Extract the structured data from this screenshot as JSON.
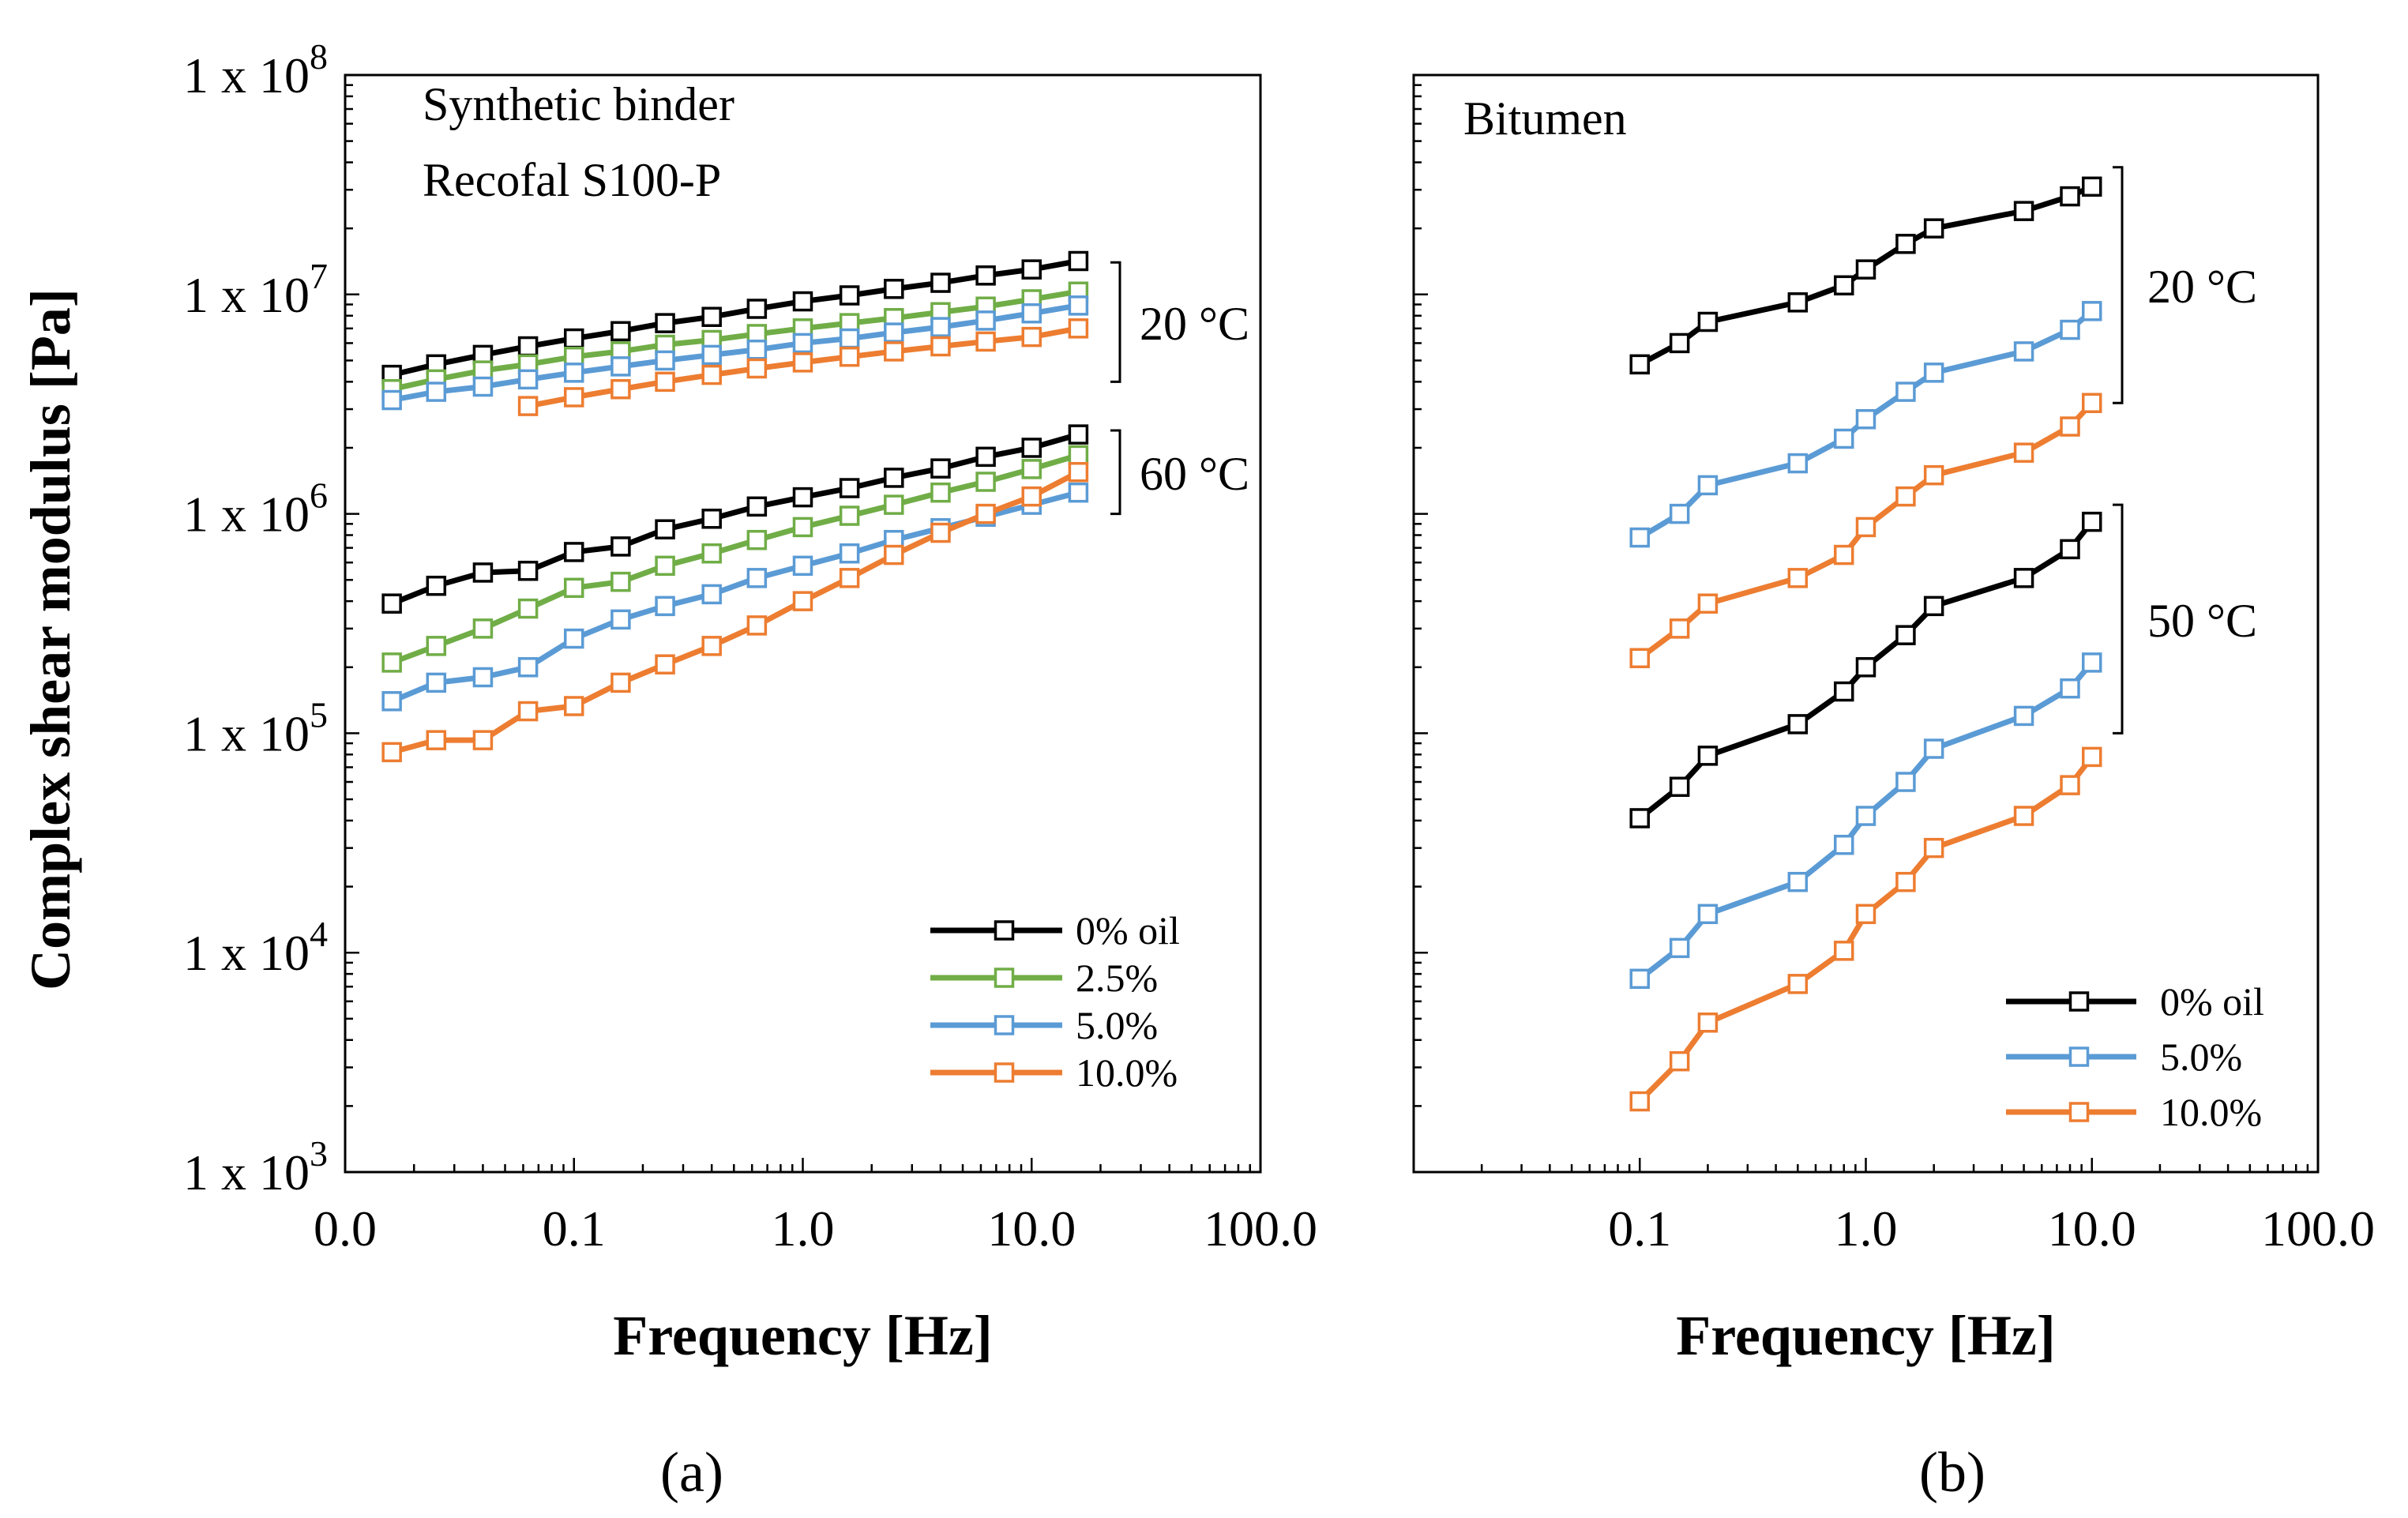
{
  "chart_data": [
    {
      "type": "line",
      "panel_label": "(a)",
      "xlabel": "Frequency [Hz]",
      "ylabel": "Complex  shear modulus [Pa]",
      "x_scale": "log",
      "y_scale": "log",
      "xlim": [
        0.01,
        100
      ],
      "ylim": [
        1000,
        100000000
      ],
      "x_tick_values": [
        0.01,
        0.1,
        1,
        10,
        100
      ],
      "x_tick_labels": [
        "0.0",
        "0.1",
        "1.0",
        "10.0",
        "100.0"
      ],
      "y_tick_values": [
        1000,
        10000,
        100000,
        1000000,
        10000000,
        100000000
      ],
      "y_tick_labels": [
        {
          "base": "1 x 10",
          "exp": "3"
        },
        {
          "base": "1 x 10",
          "exp": "4"
        },
        {
          "base": "1 x 10",
          "exp": "5"
        },
        {
          "base": "1 x 10",
          "exp": "6"
        },
        {
          "base": "1 x 10",
          "exp": "7"
        },
        {
          "base": "1 x 10",
          "exp": "8"
        }
      ],
      "annotations": [
        {
          "lines": [
            "Synthetic binder",
            "Recofal S100-P"
          ]
        },
        {
          "text": "20 °C",
          "bracket": [
            4000000,
            14000000
          ]
        },
        {
          "text": "60 °C",
          "bracket": [
            1000000,
            2400000
          ]
        }
      ],
      "legend": {
        "position": "bottom-right",
        "entries": [
          "0% oil",
          "2.5%",
          "5.0%",
          "10.0%"
        ]
      },
      "grid": false,
      "series": [
        {
          "legend_index": 0,
          "color": "#000000",
          "temperature": "20 °C",
          "x": [
            0.016,
            0.025,
            0.04,
            0.063,
            0.1,
            0.16,
            0.25,
            0.4,
            0.63,
            1.0,
            1.6,
            2.5,
            4.0,
            6.3,
            10,
            16
          ],
          "y": [
            4300000,
            4800000,
            5300000,
            5800000,
            6300000,
            6800000,
            7400000,
            7900000,
            8600000,
            9300000,
            9900000,
            10600000,
            11300000,
            12200000,
            13000000,
            14200000
          ]
        },
        {
          "legend_index": 1,
          "color": "#70ad47",
          "temperature": "20 °C",
          "x": [
            0.016,
            0.025,
            0.04,
            0.063,
            0.1,
            0.16,
            0.25,
            0.4,
            0.63,
            1.0,
            1.6,
            2.5,
            4.0,
            6.3,
            10,
            16
          ],
          "y": [
            3700000,
            4100000,
            4500000,
            4800000,
            5200000,
            5500000,
            5900000,
            6200000,
            6600000,
            7000000,
            7400000,
            7800000,
            8300000,
            8800000,
            9500000,
            10300000
          ]
        },
        {
          "legend_index": 2,
          "color": "#5b9bd5",
          "temperature": "20 °C",
          "x": [
            0.016,
            0.025,
            0.04,
            0.063,
            0.1,
            0.16,
            0.25,
            0.4,
            0.63,
            1.0,
            1.6,
            2.5,
            4.0,
            6.3,
            10,
            16
          ],
          "y": [
            3300000,
            3600000,
            3800000,
            4100000,
            4400000,
            4700000,
            5000000,
            5300000,
            5600000,
            6000000,
            6300000,
            6700000,
            7100000,
            7600000,
            8200000,
            8900000
          ]
        },
        {
          "legend_index": 3,
          "color": "#ed7d31",
          "temperature": "20 °C",
          "x": [
            0.063,
            0.1,
            0.16,
            0.25,
            0.4,
            0.63,
            1.0,
            1.6,
            2.5,
            4.0,
            6.3,
            10,
            16
          ],
          "y": [
            3100000,
            3400000,
            3700000,
            4000000,
            4300000,
            4600000,
            4900000,
            5200000,
            5500000,
            5800000,
            6100000,
            6400000,
            7000000
          ]
        },
        {
          "legend_index": 0,
          "color": "#000000",
          "temperature": "60 °C",
          "x": [
            0.016,
            0.025,
            0.04,
            0.063,
            0.1,
            0.16,
            0.25,
            0.4,
            0.63,
            1.0,
            1.6,
            2.5,
            4.0,
            6.3,
            10,
            16
          ],
          "y": [
            390000,
            470000,
            540000,
            550000,
            670000,
            710000,
            850000,
            950000,
            1080000,
            1190000,
            1310000,
            1460000,
            1610000,
            1820000,
            2000000,
            2300000
          ]
        },
        {
          "legend_index": 1,
          "color": "#70ad47",
          "temperature": "60 °C",
          "x": [
            0.016,
            0.025,
            0.04,
            0.063,
            0.1,
            0.16,
            0.25,
            0.4,
            0.63,
            1.0,
            1.6,
            2.5,
            4.0,
            6.3,
            10,
            16
          ],
          "y": [
            210000,
            250000,
            300000,
            370000,
            460000,
            490000,
            580000,
            660000,
            760000,
            870000,
            980000,
            1100000,
            1250000,
            1400000,
            1600000,
            1850000
          ]
        },
        {
          "legend_index": 2,
          "color": "#5b9bd5",
          "temperature": "60 °C",
          "x": [
            0.016,
            0.025,
            0.04,
            0.063,
            0.1,
            0.16,
            0.25,
            0.4,
            0.63,
            1.0,
            1.6,
            2.5,
            4.0,
            6.3,
            10,
            16
          ],
          "y": [
            140000,
            170000,
            180000,
            200000,
            270000,
            330000,
            380000,
            430000,
            510000,
            580000,
            660000,
            760000,
            860000,
            970000,
            1100000,
            1250000
          ]
        },
        {
          "legend_index": 3,
          "color": "#ed7d31",
          "temperature": "60 °C",
          "x": [
            0.016,
            0.025,
            0.04,
            0.063,
            0.1,
            0.16,
            0.25,
            0.4,
            0.63,
            1.0,
            1.6,
            2.5,
            4.0,
            6.3,
            10,
            16
          ],
          "y": [
            82000,
            93000,
            93000,
            126000,
            133000,
            170000,
            206000,
            250000,
            310000,
            400000,
            510000,
            650000,
            820000,
            1000000,
            1200000,
            1550000
          ]
        }
      ]
    },
    {
      "type": "line",
      "panel_label": "(b)",
      "xlabel": "Frequency [Hz]",
      "ylabel": "",
      "x_scale": "log",
      "y_scale": "log",
      "xlim": [
        0.01,
        100
      ],
      "ylim": [
        1000,
        100000000
      ],
      "x_tick_values": [
        0.1,
        1,
        10,
        100
      ],
      "x_tick_labels": [
        "0.1",
        "1.0",
        "10.0",
        "100.0"
      ],
      "y_tick_values": [
        1000,
        10000,
        100000,
        1000000,
        10000000,
        100000000
      ],
      "y_tick_labels": [],
      "annotations": [
        {
          "lines": [
            "Bitumen"
          ]
        },
        {
          "text": "20 °C",
          "bracket": [
            3200000,
            38000000
          ]
        },
        {
          "text": "50 °C",
          "bracket": [
            100000,
            1100000
          ]
        }
      ],
      "legend": {
        "position": "bottom-right",
        "entries": [
          "0% oil",
          "5.0%",
          "10.0%"
        ]
      },
      "grid": false,
      "series": [
        {
          "legend_index": 0,
          "color": "#000000",
          "temperature": "20 °C",
          "x": [
            0.1,
            0.15,
            0.2,
            0.5,
            0.8,
            1.0,
            1.5,
            2.0,
            5.0,
            8.0,
            10
          ],
          "y": [
            4800000,
            6000000,
            7500000,
            9200000,
            11000000,
            13000000,
            17000000,
            20000000,
            24000000,
            28000000,
            31000000
          ]
        },
        {
          "legend_index": 1,
          "color": "#5b9bd5",
          "temperature": "20 °C",
          "x": [
            0.1,
            0.15,
            0.2,
            0.5,
            0.8,
            1.0,
            1.5,
            2.0,
            5.0,
            8.0,
            10
          ],
          "y": [
            780000,
            1000000,
            1350000,
            1700000,
            2200000,
            2700000,
            3600000,
            4400000,
            5500000,
            6900000,
            8400000
          ]
        },
        {
          "legend_index": 2,
          "color": "#ed7d31",
          "temperature": "20 °C",
          "x": [
            0.1,
            0.15,
            0.2,
            0.5,
            0.8,
            1.0,
            1.5,
            2.0,
            5.0,
            8.0,
            10
          ],
          "y": [
            220000,
            300000,
            390000,
            510000,
            650000,
            870000,
            1200000,
            1500000,
            1900000,
            2500000,
            3200000
          ]
        },
        {
          "legend_index": 0,
          "color": "#000000",
          "temperature": "50 °C",
          "x": [
            0.1,
            0.15,
            0.2,
            0.5,
            0.8,
            1.0,
            1.5,
            2.0,
            5.0,
            8.0,
            10
          ],
          "y": [
            41000,
            57000,
            79000,
            110000,
            155000,
            200000,
            280000,
            380000,
            510000,
            690000,
            920000
          ]
        },
        {
          "legend_index": 1,
          "color": "#5b9bd5",
          "temperature": "50 °C",
          "x": [
            0.1,
            0.15,
            0.2,
            0.5,
            0.8,
            1.0,
            1.5,
            2.0,
            5.0,
            8.0,
            10
          ],
          "y": [
            7600,
            10500,
            15000,
            21000,
            31000,
            42000,
            60000,
            85000,
            120000,
            160000,
            210000
          ]
        },
        {
          "legend_index": 2,
          "color": "#ed7d31",
          "temperature": "50 °C",
          "x": [
            0.1,
            0.15,
            0.2,
            0.5,
            0.8,
            1.0,
            1.5,
            2.0,
            5.0,
            8.0,
            10
          ],
          "y": [
            2100,
            3200,
            4800,
            7200,
            10200,
            15000,
            21000,
            30000,
            42000,
            58000,
            78000
          ]
        }
      ]
    }
  ]
}
